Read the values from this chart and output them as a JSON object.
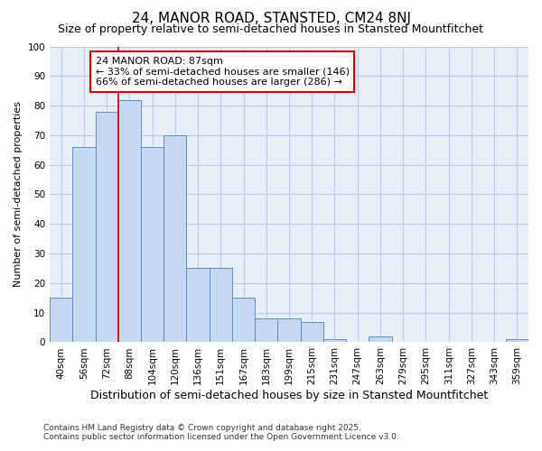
{
  "title": "24, MANOR ROAD, STANSTED, CM24 8NJ",
  "subtitle": "Size of property relative to semi-detached houses in Stansted Mountfitchet",
  "xlabel": "Distribution of semi-detached houses by size in Stansted Mountfitchet",
  "ylabel": "Number of semi-detached properties",
  "categories": [
    "40sqm",
    "56sqm",
    "72sqm",
    "88sqm",
    "104sqm",
    "120sqm",
    "136sqm",
    "151sqm",
    "167sqm",
    "183sqm",
    "199sqm",
    "215sqm",
    "231sqm",
    "247sqm",
    "263sqm",
    "279sqm",
    "295sqm",
    "311sqm",
    "327sqm",
    "343sqm",
    "359sqm"
  ],
  "values": [
    15,
    66,
    78,
    82,
    66,
    70,
    25,
    25,
    15,
    8,
    8,
    7,
    1,
    0,
    2,
    0,
    0,
    0,
    0,
    0,
    1
  ],
  "bar_color": "#c5d8f0",
  "bar_edge_color": "#5b8fcc",
  "vline_x_idx": 3,
  "vline_color": "#cc0000",
  "annotation_text": "24 MANOR ROAD: 87sqm\n← 33% of semi-detached houses are smaller (146)\n66% of semi-detached houses are larger (286) →",
  "annotation_box_color": "#ffffff",
  "annotation_box_edge": "#cc0000",
  "ylim": [
    0,
    100
  ],
  "yticks": [
    0,
    10,
    20,
    30,
    40,
    50,
    60,
    70,
    80,
    90,
    100
  ],
  "footnote": "Contains HM Land Registry data © Crown copyright and database right 2025.\nContains public sector information licensed under the Open Government Licence v3.0.",
  "plot_bg_color": "#e8eef8",
  "fig_bg_color": "#ffffff",
  "grid_color": "#c0ccdd",
  "title_fontsize": 11,
  "subtitle_fontsize": 9,
  "xlabel_fontsize": 9,
  "ylabel_fontsize": 8,
  "tick_fontsize": 7.5,
  "annotation_fontsize": 8,
  "footnote_fontsize": 6.5
}
